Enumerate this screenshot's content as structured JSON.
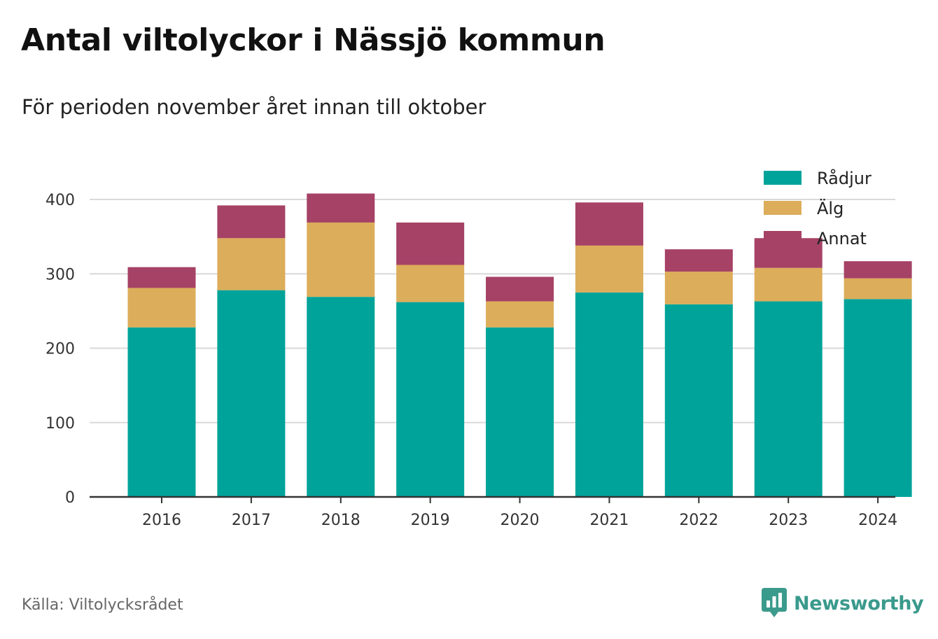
{
  "header": {
    "title": "Antal viltolyckor i Nässjö kommun",
    "subtitle": "För perioden november året innan till oktober"
  },
  "footer": {
    "source": "Källa: Viltolycksrådet",
    "brand": "Newsworthy"
  },
  "chart_data": {
    "type": "bar",
    "stacked": true,
    "title": "Antal viltolyckor i Nässjö kommun",
    "subtitle": "För perioden november året innan till oktober",
    "categories": [
      "2016",
      "2017",
      "2018",
      "2019",
      "2020",
      "2021",
      "2022",
      "2023",
      "2024"
    ],
    "series": [
      {
        "name": "Rådjur",
        "color": "#00a39a",
        "values": [
          228,
          278,
          269,
          262,
          228,
          275,
          259,
          263,
          266
        ]
      },
      {
        "name": "Älg",
        "color": "#dcad5a",
        "values": [
          53,
          70,
          100,
          50,
          35,
          63,
          44,
          45,
          28
        ]
      },
      {
        "name": "Annat",
        "color": "#a64266",
        "values": [
          28,
          44,
          39,
          57,
          33,
          58,
          30,
          40,
          23
        ]
      }
    ],
    "yticks": [
      0,
      100,
      200,
      300,
      400
    ],
    "ylim": [
      0,
      420
    ],
    "grid": true,
    "legend_position": "top-right"
  }
}
